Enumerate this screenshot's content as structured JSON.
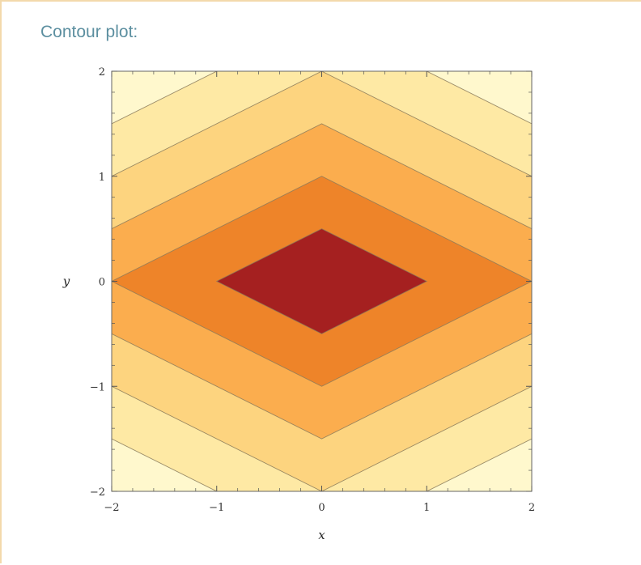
{
  "heading": "Contour plot:",
  "chart_data": {
    "type": "contour",
    "function": "|x|/2 + |y|",
    "xlabel": "x",
    "ylabel": "y",
    "xlim": [
      -2,
      2
    ],
    "ylim": [
      -2,
      2
    ],
    "xticks": [
      {
        "value": -2,
        "label": "−2"
      },
      {
        "value": -1,
        "label": "−1"
      },
      {
        "value": 0,
        "label": "0"
      },
      {
        "value": 1,
        "label": "1"
      },
      {
        "value": 2,
        "label": "2"
      }
    ],
    "yticks": [
      {
        "value": -2,
        "label": "−2"
      },
      {
        "value": -1,
        "label": "−1"
      },
      {
        "value": 0,
        "label": "0"
      },
      {
        "value": 1,
        "label": "1"
      },
      {
        "value": 2,
        "label": "2"
      }
    ],
    "contour_levels": [
      0.5,
      1,
      1.5,
      2,
      2.5
    ],
    "band_colors": [
      "#a52020",
      "#ee8429",
      "#fbad4e",
      "#fdd47f",
      "#fee9a4",
      "#fff8cd"
    ],
    "contour_line_color": "#8a7a5a",
    "frame_color": "#666666"
  }
}
